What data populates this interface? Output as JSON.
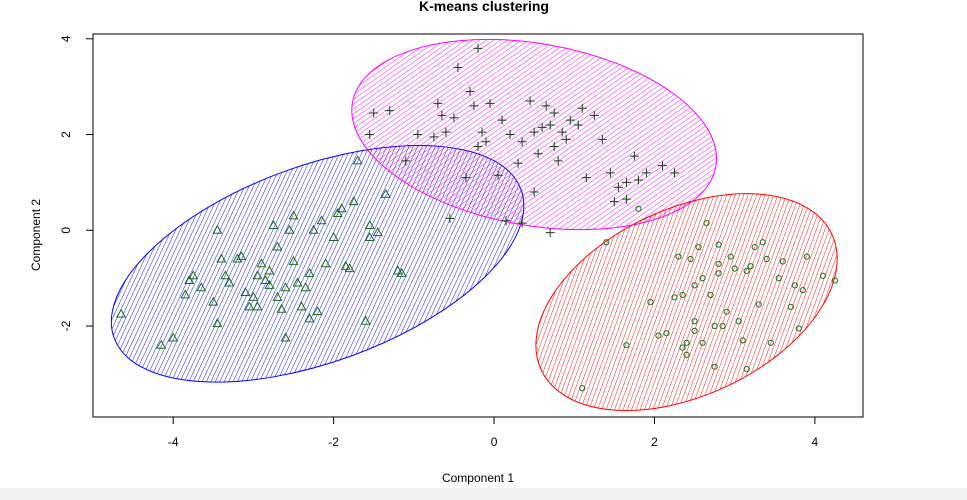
{
  "chart_data": {
    "type": "scatter",
    "title": "K-means clustering",
    "xlabel": "Component 1",
    "ylabel": "Component 2",
    "xlim": [
      -5.0,
      4.6
    ],
    "ylim": [
      -3.9,
      4.1
    ],
    "xticks": [
      "-4",
      "-2",
      "0",
      "2",
      "4"
    ],
    "xtick_values": [
      -4,
      -2,
      0,
      2,
      4
    ],
    "yticks": [
      "-2",
      "0",
      "2",
      "4"
    ],
    "ytick_values": [
      -2,
      0,
      2,
      4
    ],
    "grid": false,
    "clusters": [
      {
        "marker": "triangle",
        "ellipse_color": "#0000ff",
        "ellipse": {
          "cx": -2.2,
          "cy": -0.7,
          "rx": 2.7,
          "ry": 2.05,
          "angle_deg": 20
        },
        "points": [
          [
            -4.65,
            -1.75
          ],
          [
            -4.15,
            -2.4
          ],
          [
            -4.0,
            -2.25
          ],
          [
            -3.85,
            -1.35
          ],
          [
            -3.8,
            -1.05
          ],
          [
            -3.75,
            -0.95
          ],
          [
            -3.65,
            -1.2
          ],
          [
            -3.5,
            -1.5
          ],
          [
            -3.45,
            -1.95
          ],
          [
            -3.45,
            0.0
          ],
          [
            -3.4,
            -0.6
          ],
          [
            -3.35,
            -0.95
          ],
          [
            -3.2,
            -0.6
          ],
          [
            -3.15,
            -0.55
          ],
          [
            -3.1,
            -1.3
          ],
          [
            -3.05,
            -1.6
          ],
          [
            -3.0,
            -1.4
          ],
          [
            -2.95,
            -0.95
          ],
          [
            -2.9,
            -0.7
          ],
          [
            -2.85,
            -1.05
          ],
          [
            -2.8,
            -1.15
          ],
          [
            -2.8,
            -0.85
          ],
          [
            -2.75,
            0.1
          ],
          [
            -2.7,
            -1.4
          ],
          [
            -2.65,
            -1.65
          ],
          [
            -2.6,
            -2.25
          ],
          [
            -2.6,
            -1.2
          ],
          [
            -2.55,
            0.0
          ],
          [
            -2.5,
            -0.65
          ],
          [
            -2.5,
            0.3
          ],
          [
            -2.45,
            -1.1
          ],
          [
            -2.4,
            -1.6
          ],
          [
            -2.35,
            -1.2
          ],
          [
            -2.3,
            -0.9
          ],
          [
            -2.3,
            -1.85
          ],
          [
            -2.25,
            0.0
          ],
          [
            -2.2,
            -1.7
          ],
          [
            -2.15,
            0.2
          ],
          [
            -2.1,
            -0.7
          ],
          [
            -2.0,
            -0.15
          ],
          [
            -1.95,
            0.35
          ],
          [
            -1.9,
            0.45
          ],
          [
            -1.85,
            -0.75
          ],
          [
            -1.8,
            -0.8
          ],
          [
            -1.75,
            0.6
          ],
          [
            -1.7,
            1.45
          ],
          [
            -1.6,
            -1.9
          ],
          [
            -1.55,
            0.1
          ],
          [
            -1.45,
            -0.05
          ],
          [
            -1.35,
            0.75
          ],
          [
            -1.2,
            -0.85
          ],
          [
            -1.15,
            -0.9
          ],
          [
            -1.55,
            -0.15
          ],
          [
            -2.7,
            -0.35
          ],
          [
            -3.3,
            -1.1
          ],
          [
            -2.95,
            -1.6
          ]
        ]
      },
      {
        "marker": "plus",
        "ellipse_color": "#ff00ff",
        "ellipse": {
          "cx": 0.5,
          "cy": 2.0,
          "rx": 2.3,
          "ry": 1.9,
          "angle_deg": -10
        },
        "points": [
          [
            -1.55,
            2.0
          ],
          [
            -1.5,
            2.45
          ],
          [
            -1.3,
            2.5
          ],
          [
            -1.1,
            1.45
          ],
          [
            -0.95,
            2.0
          ],
          [
            -0.75,
            1.95
          ],
          [
            -0.7,
            2.65
          ],
          [
            -0.65,
            2.4
          ],
          [
            -0.6,
            2.05
          ],
          [
            -0.5,
            2.35
          ],
          [
            -0.45,
            3.4
          ],
          [
            -0.35,
            1.1
          ],
          [
            -0.3,
            2.9
          ],
          [
            -0.25,
            2.6
          ],
          [
            -0.2,
            1.75
          ],
          [
            -0.15,
            2.05
          ],
          [
            -0.1,
            1.85
          ],
          [
            -0.05,
            2.65
          ],
          [
            0.05,
            1.15
          ],
          [
            0.1,
            2.3
          ],
          [
            0.2,
            2.0
          ],
          [
            0.3,
            1.4
          ],
          [
            0.35,
            1.85
          ],
          [
            0.45,
            2.7
          ],
          [
            0.5,
            2.05
          ],
          [
            0.55,
            1.6
          ],
          [
            0.6,
            2.15
          ],
          [
            0.65,
            2.6
          ],
          [
            0.7,
            2.2
          ],
          [
            0.75,
            2.45
          ],
          [
            0.8,
            1.45
          ],
          [
            0.85,
            2.05
          ],
          [
            0.95,
            2.3
          ],
          [
            1.05,
            2.2
          ],
          [
            1.1,
            2.55
          ],
          [
            1.15,
            1.1
          ],
          [
            1.25,
            2.4
          ],
          [
            1.35,
            1.9
          ],
          [
            1.45,
            1.2
          ],
          [
            1.5,
            0.6
          ],
          [
            1.65,
            0.65
          ],
          [
            1.75,
            1.55
          ],
          [
            1.8,
            1.05
          ],
          [
            1.9,
            1.2
          ],
          [
            2.1,
            1.35
          ],
          [
            2.25,
            1.2
          ],
          [
            -0.2,
            3.8
          ],
          [
            0.7,
            -0.05
          ],
          [
            0.15,
            0.2
          ],
          [
            -0.55,
            0.25
          ],
          [
            0.35,
            0.15
          ],
          [
            1.55,
            0.9
          ],
          [
            1.65,
            1.0
          ],
          [
            0.5,
            0.8
          ],
          [
            0.9,
            1.9
          ],
          [
            0.75,
            1.75
          ]
        ]
      },
      {
        "marker": "circle",
        "ellipse_color": "#ff0000",
        "ellipse": {
          "cx": 2.4,
          "cy": -1.5,
          "rx": 2.0,
          "ry": 1.95,
          "angle_deg": 25
        },
        "points": [
          [
            1.1,
            -3.3
          ],
          [
            1.4,
            -0.25
          ],
          [
            1.65,
            -2.4
          ],
          [
            1.8,
            0.45
          ],
          [
            1.95,
            -1.5
          ],
          [
            2.15,
            -2.15
          ],
          [
            2.25,
            -1.4
          ],
          [
            2.3,
            -0.55
          ],
          [
            2.35,
            -2.45
          ],
          [
            2.4,
            -2.6
          ],
          [
            2.45,
            -0.6
          ],
          [
            2.5,
            -1.15
          ],
          [
            2.5,
            -1.9
          ],
          [
            2.55,
            -0.35
          ],
          [
            2.6,
            -1.0
          ],
          [
            2.6,
            -2.35
          ],
          [
            2.65,
            0.15
          ],
          [
            2.7,
            -1.35
          ],
          [
            2.75,
            -2.85
          ],
          [
            2.8,
            -0.7
          ],
          [
            2.8,
            -0.9
          ],
          [
            2.85,
            -2.0
          ],
          [
            2.9,
            -1.7
          ],
          [
            2.95,
            -0.55
          ],
          [
            3.0,
            -0.8
          ],
          [
            3.05,
            -1.9
          ],
          [
            3.1,
            -2.3
          ],
          [
            3.15,
            -0.85
          ],
          [
            3.2,
            -0.75
          ],
          [
            3.25,
            -0.35
          ],
          [
            3.3,
            -1.55
          ],
          [
            3.35,
            -0.25
          ],
          [
            3.4,
            -0.6
          ],
          [
            3.45,
            -2.35
          ],
          [
            3.55,
            -1.0
          ],
          [
            3.6,
            -0.65
          ],
          [
            3.7,
            -1.6
          ],
          [
            3.75,
            -1.15
          ],
          [
            3.8,
            -2.05
          ],
          [
            3.85,
            -1.25
          ],
          [
            3.9,
            -0.55
          ],
          [
            4.1,
            -0.95
          ],
          [
            4.25,
            -1.05
          ],
          [
            2.35,
            -1.35
          ],
          [
            2.05,
            -2.2
          ],
          [
            2.4,
            -2.35
          ],
          [
            2.75,
            -2.0
          ],
          [
            3.15,
            -2.9
          ],
          [
            2.8,
            -0.3
          ],
          [
            2.5,
            -2.1
          ]
        ]
      }
    ]
  },
  "colors": {
    "point_stroke": "#1a6b1a",
    "axis": "#000000"
  }
}
